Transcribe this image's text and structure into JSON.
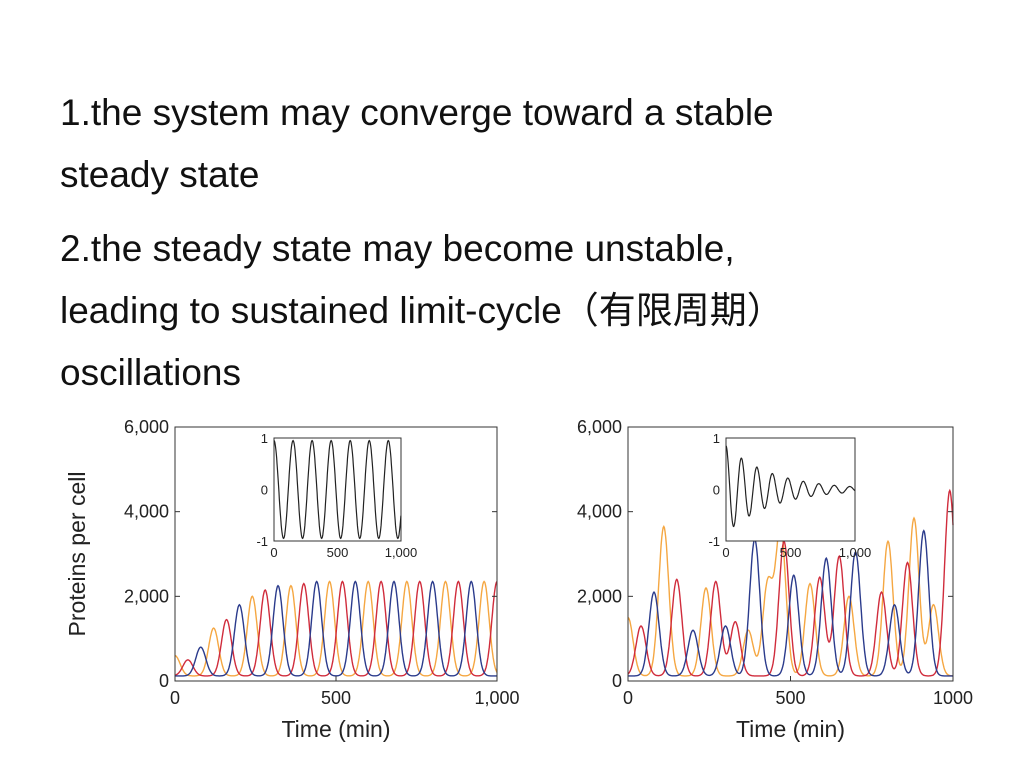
{
  "bullets": [
    {
      "line1": "1.the system may converge toward a stable",
      "line2": "steady state"
    },
    {
      "line1": "2.the steady state may become unstable,",
      "line2": "leading to sustained limit-cycle（有限周期）",
      "line3": "oscillations"
    }
  ],
  "colors": {
    "series_a": "#f5a742",
    "series_b": "#d02c3c",
    "series_c": "#2b3b8c",
    "inset": "#222222"
  },
  "chart_data": [
    {
      "type": "line",
      "ylabel": "Proteins per cell",
      "xlabel": "Time (min)",
      "xlim": [
        0,
        1000
      ],
      "ylim": [
        0,
        6000
      ],
      "x_ticks": [
        "0",
        "500",
        "1,000"
      ],
      "y_ticks": [
        "0",
        "2,000",
        "4,000",
        "6,000"
      ],
      "series": [
        {
          "peaks_x": [
            0,
            120,
            240,
            360,
            480,
            600,
            720,
            840,
            960
          ],
          "peaks_y": [
            600,
            1250,
            2000,
            2250,
            2350,
            2350,
            2350,
            2350,
            2350
          ],
          "period": 120,
          "phase": 0
        },
        {
          "peaks_x": [
            40,
            160,
            280,
            400,
            520,
            640,
            760,
            880,
            1000
          ],
          "peaks_y": [
            500,
            1450,
            2150,
            2300,
            2350,
            2350,
            2350,
            2350,
            2350
          ],
          "period": 120,
          "phase": 40
        },
        {
          "peaks_x": [
            80,
            200,
            320,
            440,
            560,
            680,
            800,
            920
          ],
          "peaks_y": [
            800,
            1800,
            2250,
            2350,
            2350,
            2350,
            2350,
            2350
          ],
          "period": 120,
          "phase": 80
        }
      ],
      "inset": {
        "x_ticks": [
          "0",
          "500",
          "1,000"
        ],
        "y_ticks": [
          "-1",
          "0",
          "1"
        ],
        "xlim": [
          0,
          1000
        ],
        "ylim": [
          -1,
          1
        ],
        "period": 150,
        "amplitude": 0.95,
        "decay": 0
      }
    },
    {
      "type": "line",
      "ylabel": "",
      "xlabel": "Time (min)",
      "xlim": [
        0,
        1000
      ],
      "ylim": [
        0,
        6000
      ],
      "x_ticks": [
        "0",
        "500",
        "1000"
      ],
      "y_ticks": [
        "0",
        "2,000",
        "4,000",
        "6,000"
      ],
      "series": [
        {
          "peaks_x": [
            0,
            110,
            240,
            370,
            430,
            470,
            560,
            680,
            800,
            880,
            940
          ],
          "peaks_y": [
            1500,
            3650,
            2200,
            1200,
            2300,
            3600,
            2300,
            2000,
            3300,
            3850,
            1800
          ],
          "period": 0,
          "phase": 0
        },
        {
          "peaks_x": [
            40,
            150,
            270,
            330,
            480,
            590,
            650,
            780,
            860,
            990
          ],
          "peaks_y": [
            1300,
            2400,
            2350,
            1400,
            3300,
            2450,
            2950,
            2100,
            2800,
            4500
          ],
          "period": 0,
          "phase": 0
        },
        {
          "peaks_x": [
            80,
            200,
            300,
            390,
            510,
            610,
            700,
            820,
            910
          ],
          "peaks_y": [
            2100,
            1200,
            1300,
            3350,
            2500,
            2900,
            3050,
            1800,
            3550
          ],
          "period": 0,
          "phase": 0
        }
      ],
      "inset": {
        "x_ticks": [
          "0",
          "500",
          "1,000"
        ],
        "y_ticks": [
          "-1",
          "0",
          "1"
        ],
        "xlim": [
          0,
          1000
        ],
        "ylim": [
          -1,
          1
        ],
        "period": 120,
        "amplitude": 0.85,
        "decay": 0.0028
      }
    }
  ]
}
